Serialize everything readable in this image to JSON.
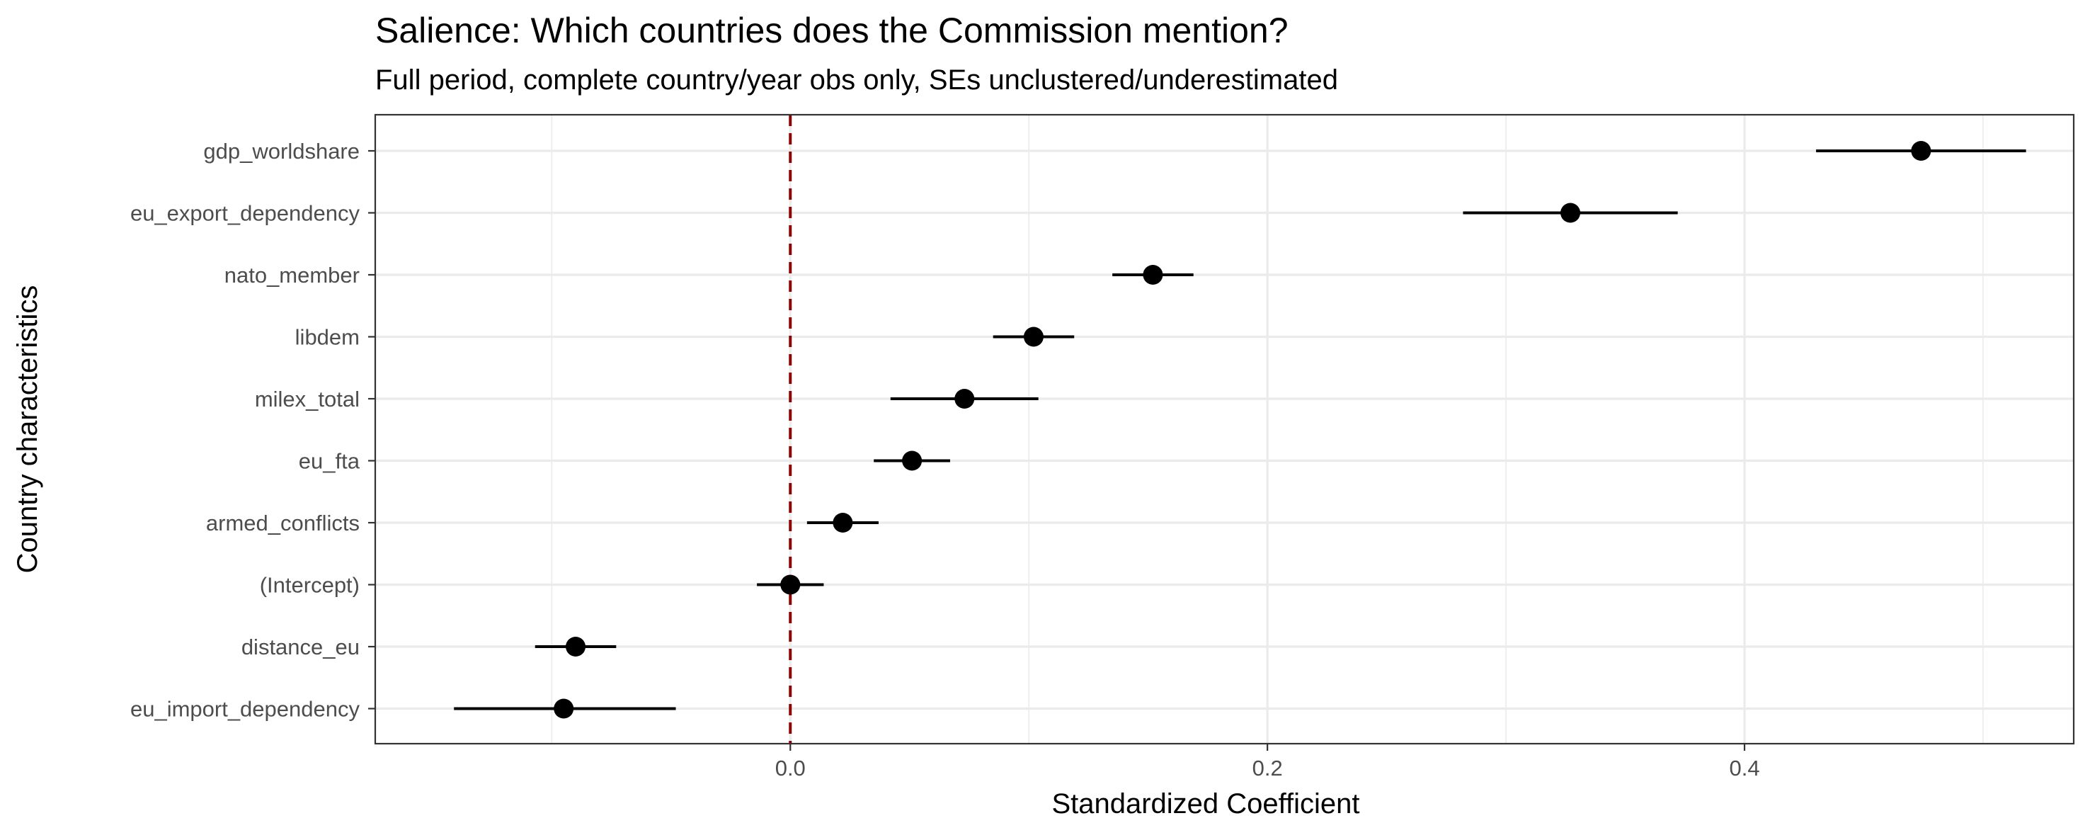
{
  "chart_data": {
    "type": "scatter",
    "title": "Salience: Which countries does the Commission mention?",
    "subtitle": "Full period, complete country/year obs only, SEs unclustered/underestimated",
    "xlabel": "Standardized Coefficient",
    "ylabel": "Country characteristics",
    "xlim": [
      -0.174,
      0.538
    ],
    "x_ticks": [
      0.0,
      0.2,
      0.4
    ],
    "x_tick_labels": [
      "0.0",
      "0.2",
      "0.4"
    ],
    "x_minor_ticks": [
      -0.1,
      0.1,
      0.3,
      0.5
    ],
    "grid": true,
    "reference_line": {
      "x": 0,
      "color": "#8b0000",
      "style": "dashed"
    },
    "point_color": "#000000",
    "interval_color": "#000000",
    "categories": [
      "gdp_worldshare",
      "eu_export_dependency",
      "nato_member",
      "libdem",
      "milex_total",
      "eu_fta",
      "armed_conflicts",
      "(Intercept)",
      "distance_eu",
      "eu_import_dependency"
    ],
    "estimates": [
      0.474,
      0.327,
      0.152,
      0.102,
      0.073,
      0.051,
      0.022,
      0.0,
      -0.09,
      -0.095
    ],
    "lower": [
      0.43,
      0.282,
      0.135,
      0.085,
      0.042,
      0.035,
      0.007,
      -0.014,
      -0.107,
      -0.141
    ],
    "upper": [
      0.518,
      0.372,
      0.169,
      0.119,
      0.104,
      0.067,
      0.037,
      0.014,
      -0.073,
      -0.048
    ]
  }
}
